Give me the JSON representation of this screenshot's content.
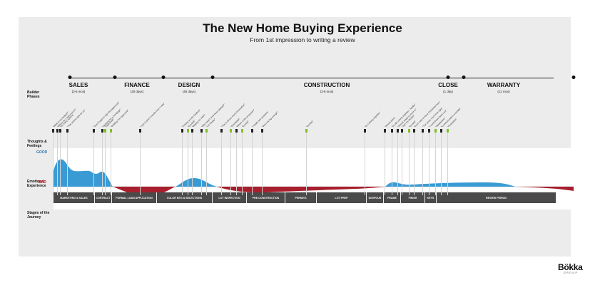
{
  "title": "The New Home Buying Experience",
  "subtitle": "From 1st impression to writing a review",
  "row_labels": {
    "builder_phases": "Builder Phases",
    "thoughts": "Thoughts & Feelings",
    "emotional": "Emotional Experience",
    "good": "GOOD",
    "bad": "BAD",
    "stages": "Stages of the Journey"
  },
  "phases": [
    {
      "name": "SALES",
      "duration": "(3-6 mos)"
    },
    {
      "name": "FINANCE",
      "duration": "(30 days)"
    },
    {
      "name": "DESIGN",
      "duration": "(45 days)"
    },
    {
      "name": "CONSTRUCTION",
      "duration": "(3-8 mos)"
    },
    {
      "name": "CLOSE",
      "duration": "(1 day)"
    },
    {
      "name": "WARRANTY",
      "duration": "(12 mos)"
    }
  ],
  "stages": [
    "MARKETING & SALES",
    "CONTRACT",
    "FORMAL LOAN APPLICATION",
    "COLOR MTG & SELECTIONS",
    "LOT INSPECTION",
    "PRE-CONSTRUCTION",
    "PERMITS",
    "LOT PREP",
    "DIG/POUR",
    "FRAME",
    "FINISH",
    "KEYS",
    "REVIEW PERIOD"
  ],
  "thoughts": [
    {
      "text": "\"What is my budget?\"",
      "positive": false
    },
    {
      "text": "\"Where do I want to live?\"",
      "positive": false
    },
    {
      "text": "\"So many options\"",
      "positive": false
    },
    {
      "text": "\"This seems right for us\"",
      "positive": false
    },
    {
      "text": "\"Don't forget to sign the paperwork\"",
      "positive": false
    },
    {
      "text": "\"Applying for a mortgage\"",
      "positive": false
    },
    {
      "text": "\"Approved!\"",
      "positive": true
    },
    {
      "text": "\"Building Pre-Approved\"",
      "positive": true
    },
    {
      "text": "\"I get to pick it exactly how I want\"",
      "positive": false
    },
    {
      "text": "\"Picking out the finishes\"",
      "positive": false
    },
    {
      "text": "\"Excited!\"",
      "positive": true
    },
    {
      "text": "\"Waiting for HOA\"",
      "positive": false
    },
    {
      "text": "\"Why hasn't work been started?\"",
      "positive": false
    },
    {
      "text": "\"Lot Ready\"",
      "positive": true
    },
    {
      "text": "\"This is all too much information\"",
      "positive": false
    },
    {
      "text": "\"Scheduled\"",
      "positive": true
    },
    {
      "text": "\"Where is the progress?\"",
      "positive": false
    },
    {
      "text": "\"Excited\"",
      "positive": true
    },
    {
      "text": "\"I finally see progress\"",
      "positive": false
    },
    {
      "text": "\"Wow it's big enough\"",
      "positive": false
    },
    {
      "text": "\"Excited\"",
      "positive": true
    },
    {
      "text": "\"It's coming together\"",
      "positive": false
    },
    {
      "text": "\"Almost done\"",
      "positive": false
    },
    {
      "text": "\"It's all coming together - finally!\"",
      "positive": false
    },
    {
      "text": "\"Almost ready to move in\"",
      "positive": false
    },
    {
      "text": "\"Yay! It's DONE!\"",
      "positive": false
    },
    {
      "text": "\"Excited\"",
      "positive": true
    },
    {
      "text": "\"Don't want to have Christmas here\"",
      "positive": false
    },
    {
      "text": "\"The doors won't lock right\"",
      "positive": false
    },
    {
      "text": "\"I need these fixed now\"",
      "positive": false
    },
    {
      "text": "\"Satisfaction\"",
      "positive": true
    },
    {
      "text": "\"Communication is terrible\"",
      "positive": false
    },
    {
      "text": "\"Frustration\"",
      "positive": true
    }
  ],
  "colors": {
    "good": "#3a9bd4",
    "bad": "#a81f2d",
    "stage_bg": "#4a4a4a",
    "accent_positive": "#7fbf2a"
  },
  "logo": {
    "name": "Bökka",
    "sub": "GROUP"
  }
}
